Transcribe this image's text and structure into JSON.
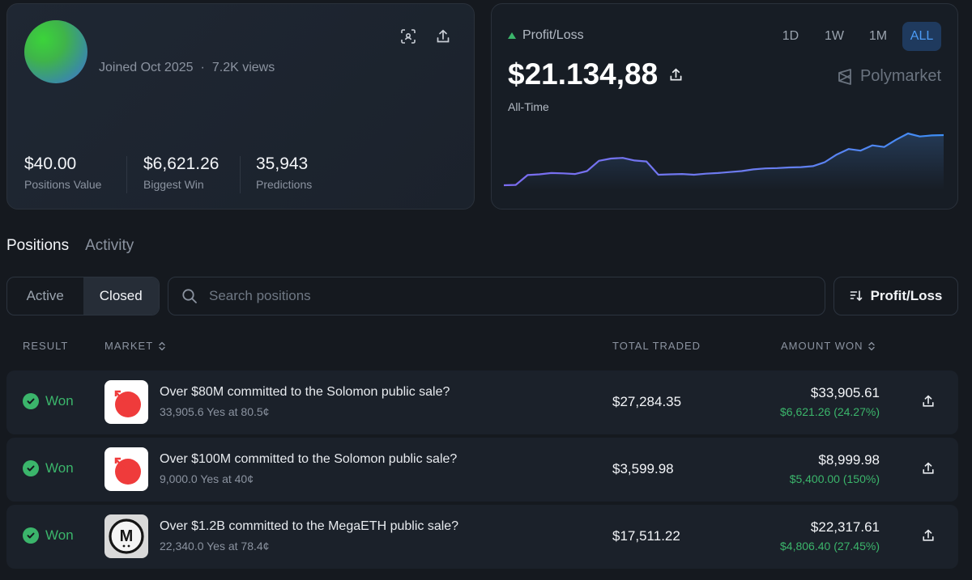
{
  "profile": {
    "joined": "Joined Oct 2025",
    "separator": "·",
    "views": "7.2K views",
    "stats": [
      {
        "value": "$40.00",
        "label": "Positions Value"
      },
      {
        "value": "$6,621.26",
        "label": "Biggest Win"
      },
      {
        "value": "35,943",
        "label": "Predictions"
      }
    ]
  },
  "pnl": {
    "label": "Profit/Loss",
    "value": "$21.134,88",
    "period_label": "All-Time",
    "ranges": [
      "1D",
      "1W",
      "1M",
      "ALL"
    ],
    "active_range": "ALL",
    "brand": "Polymarket",
    "colors": {
      "up": "#3bb56b",
      "line_start": "#7b6cf0",
      "line_end": "#3d8ef5"
    }
  },
  "chart_data": {
    "type": "line",
    "title": "",
    "series": [
      {
        "values": [
          1.2,
          1.3,
          4.3,
          4.5,
          4.9,
          4.8,
          4.6,
          5.5,
          8.6,
          9.3,
          9.5,
          8.7,
          8.4,
          4.4,
          4.5,
          4.6,
          4.4,
          4.7,
          4.9,
          5.2,
          5.5,
          6.0,
          6.3,
          6.4,
          6.6,
          6.7,
          7.0,
          8.2,
          10.5,
          12.2,
          11.7,
          13.3,
          12.8,
          15.0,
          16.9,
          16.0,
          16.3,
          16.4
        ]
      }
    ]
  },
  "tabs": {
    "positions": "Positions",
    "activity": "Activity"
  },
  "filters": {
    "active": "Active",
    "closed": "Closed"
  },
  "search": {
    "placeholder": "Search positions"
  },
  "sort": {
    "label": "Profit/Loss"
  },
  "table": {
    "headers": {
      "result": "RESULT",
      "market": "MARKET",
      "total_traded": "TOTAL TRADED",
      "amount_won": "AMOUNT WON"
    },
    "rows": [
      {
        "result": "Won",
        "icon": "solomon-logo-icon",
        "title": "Over $80M committed to the Solomon public sale?",
        "sub": "33,905.6 Yes at 80.5¢",
        "traded": "$27,284.35",
        "won": "$33,905.61",
        "gain": "$6,621.26 (24.27%)"
      },
      {
        "result": "Won",
        "icon": "solomon-logo-icon",
        "title": "Over $100M committed to the Solomon public sale?",
        "sub": "9,000.0 Yes at 40¢",
        "traded": "$3,599.98",
        "won": "$8,999.98",
        "gain": "$5,400.00 (150%)"
      },
      {
        "result": "Won",
        "icon": "megaeth-logo-icon",
        "logo_letter": "M",
        "title": "Over $1.2B committed to the MegaETH public sale?",
        "sub": "22,340.0 Yes at 78.4¢",
        "traded": "$17,511.22",
        "won": "$22,317.61",
        "gain": "$4,806.40 (27.45%)"
      }
    ]
  }
}
